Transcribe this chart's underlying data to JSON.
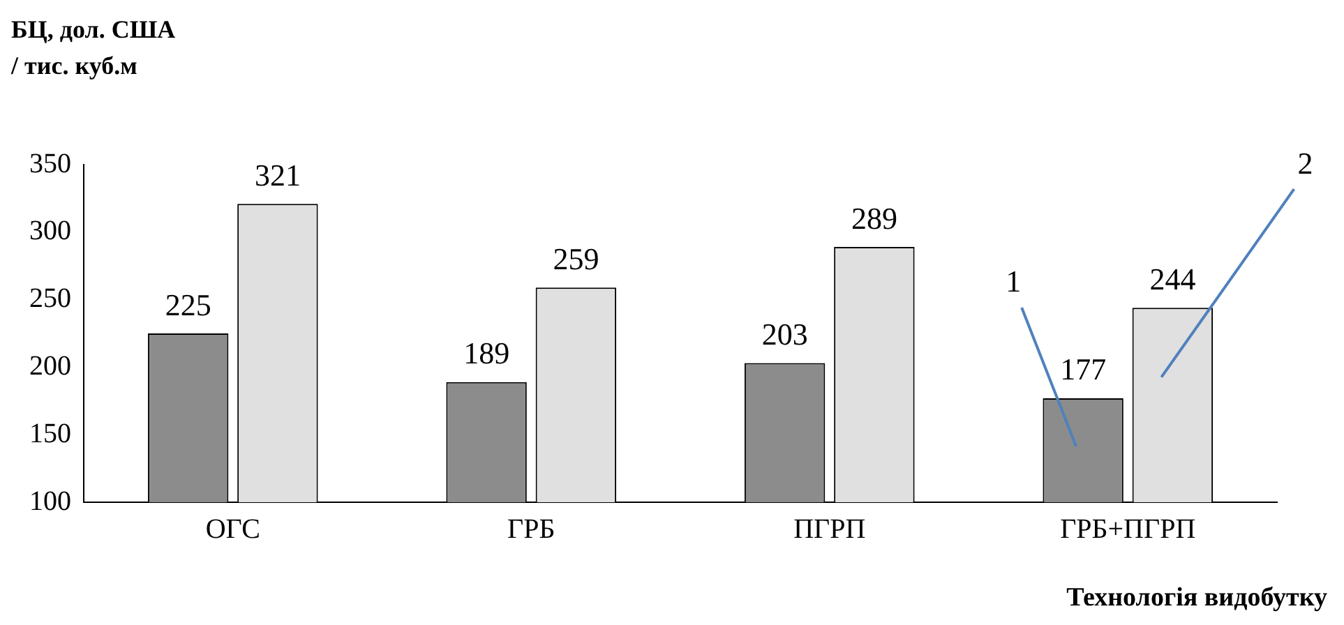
{
  "chart_data": {
    "type": "bar",
    "ylabel": "БЦ, дол. США\n/ тис. куб.м",
    "xlabel": "Технологія видобутку",
    "categories": [
      "ОГС",
      "ГРБ",
      "ПГРП",
      "ГРБ+ПГРП"
    ],
    "series": [
      {
        "name": "1",
        "color": "#8c8c8c",
        "values": [
          225,
          189,
          203,
          177
        ]
      },
      {
        "name": "2",
        "color": "#e0e0e0",
        "values": [
          321,
          259,
          289,
          244
        ]
      }
    ],
    "ylim": [
      100,
      350
    ],
    "yticks": [
      100,
      150,
      200,
      250,
      300,
      350
    ],
    "grid": false,
    "legend": false,
    "data_labels": true
  }
}
